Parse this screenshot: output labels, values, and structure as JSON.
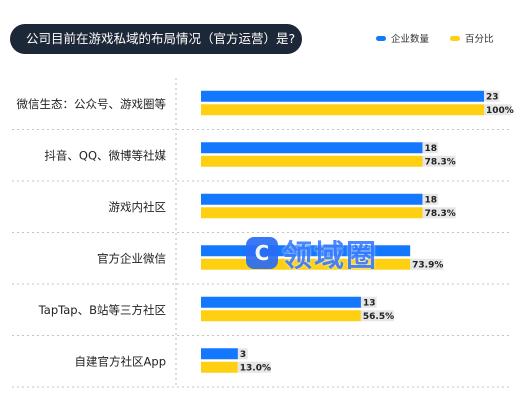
{
  "header": {
    "title": "公司目前在游戏私域的布局情况（官方运营）是?"
  },
  "legend": [
    {
      "label": "企业数量",
      "color": "#1478ff"
    },
    {
      "label": "百分比",
      "color": "#ffd012"
    }
  ],
  "watermark": {
    "glyph": "C",
    "text": "领域圈"
  },
  "chart_data": {
    "type": "bar",
    "orientation": "horizontal",
    "title": "公司目前在游戏私域的布局情况（官方运营）是?",
    "categories": [
      "微信生态：公众号、游戏圈等",
      "抖音、QQ、微博等社媒",
      "游戏内社区",
      "官方企业微信",
      "TapTap、B站等三方社区",
      "自建官方社区App"
    ],
    "series": [
      {
        "name": "企业数量",
        "values": [
          23,
          18,
          18,
          17,
          13,
          3
        ],
        "labels": [
          "23",
          "18",
          "18",
          "",
          "13",
          "3"
        ],
        "color": "#1478ff",
        "max": 23
      },
      {
        "name": "百分比",
        "values": [
          100,
          78.3,
          78.3,
          73.9,
          56.5,
          13.0
        ],
        "labels": [
          "100%",
          "78.3%",
          "78.3%",
          "73.9%",
          "56.5%",
          "13.0%"
        ],
        "color": "#ffd012",
        "max": 100
      }
    ],
    "legend_position": "top-right",
    "grid": false
  }
}
